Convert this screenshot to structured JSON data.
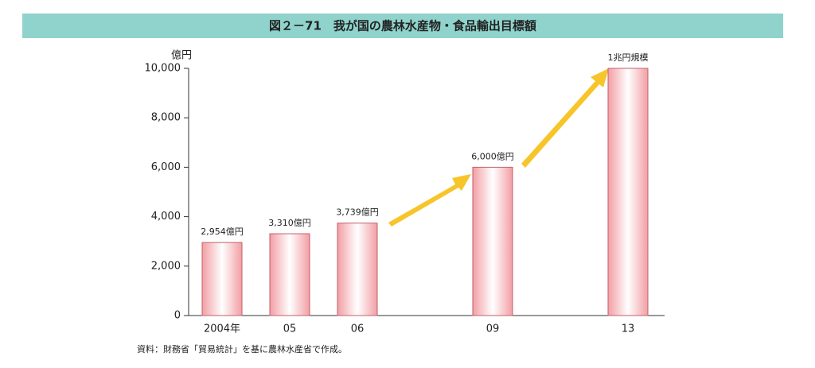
{
  "chart_data": {
    "type": "bar",
    "title": "図２－71　我が国の農林水産物・食品輸出目標額",
    "y_label": "億円",
    "note": "資料：財務省「貿易統計」を基に農林水産省で作成。",
    "categories": [
      "2004年",
      "05",
      "06",
      null,
      "09",
      null,
      "13"
    ],
    "values": [
      2954,
      3310,
      3739,
      null,
      6000,
      null,
      10000
    ],
    "value_labels": [
      "2,954億円",
      "3,310億円",
      "3,739億円",
      null,
      "6,000億円",
      null,
      "1兆円規模"
    ],
    "color": "#f29ea4",
    "ylim": [
      0,
      10000
    ],
    "yticks": [
      0,
      {
        "value": 2000,
        "label": "2,000"
      },
      {
        "value": 4000,
        "label": "4,000"
      },
      {
        "value": 6000,
        "label": "6,000"
      },
      {
        "value": 8000,
        "label": "8,000"
      },
      {
        "value": 10000,
        "label": "10,000"
      }
    ],
    "grid": false
  }
}
